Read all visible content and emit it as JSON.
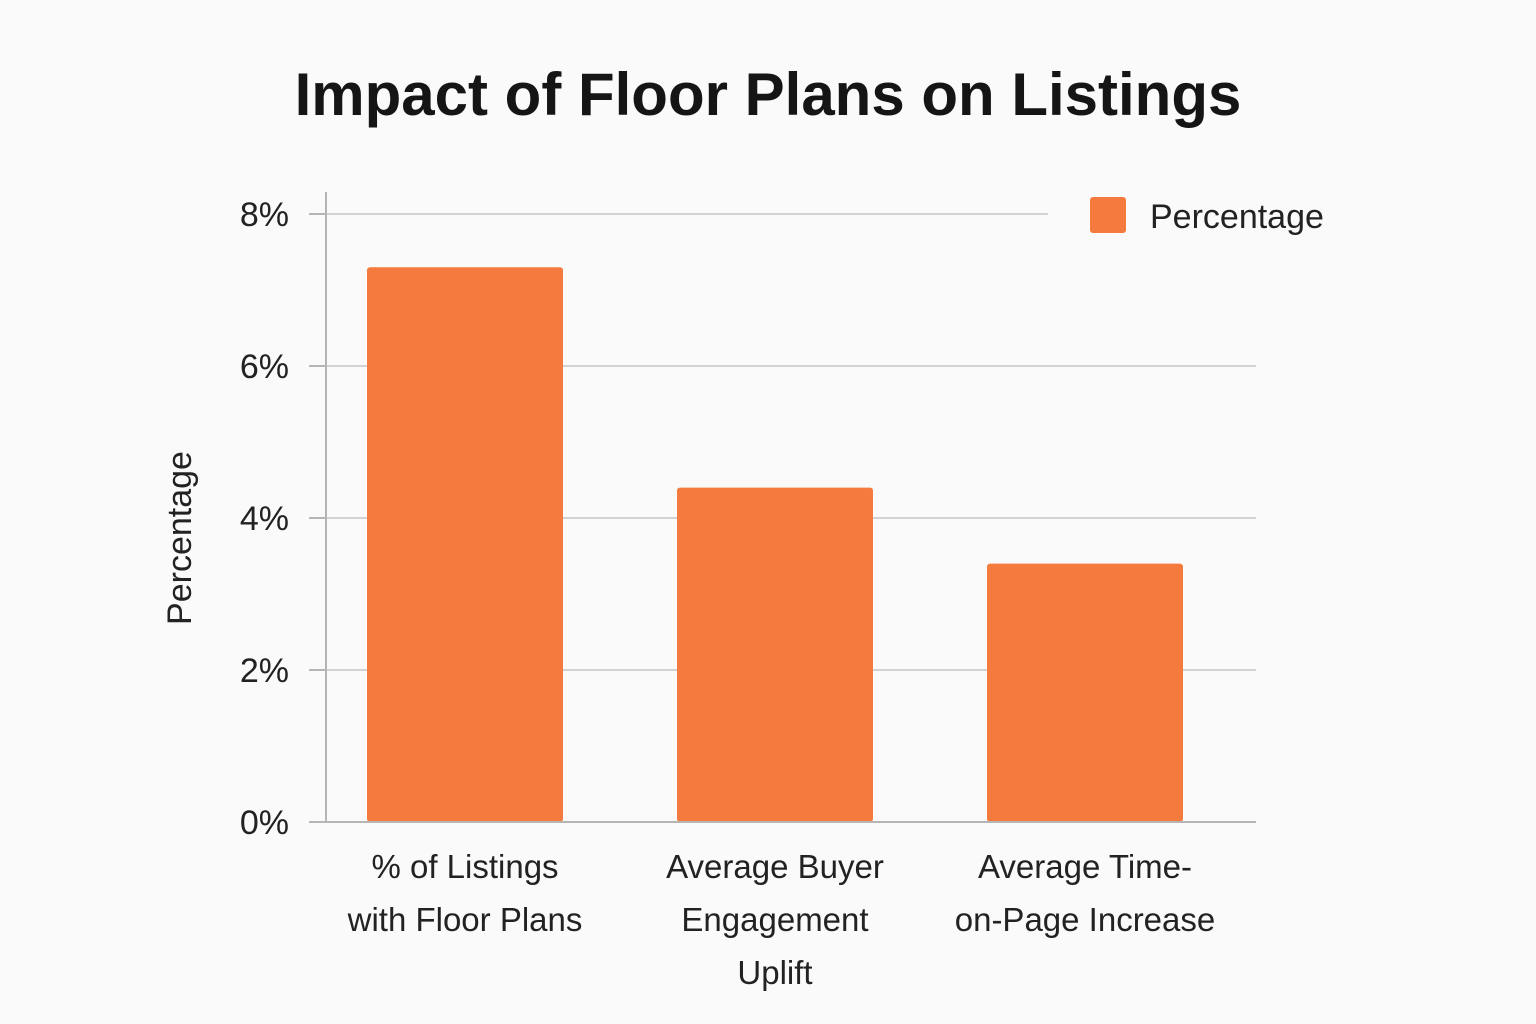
{
  "chart_data": {
    "type": "bar",
    "title": "Impact of Floor Plans on Listings",
    "xlabel": "",
    "ylabel": "Percentage",
    "ylim": [
      0,
      8
    ],
    "yticks": [
      "0%",
      "2%",
      "4%",
      "6%",
      "8%"
    ],
    "ytick_values": [
      0,
      2,
      4,
      6,
      8
    ],
    "categories": [
      "% of Listings with Floor Plans",
      "Average Buyer Engagement Uplift",
      "Average Time-on-Page Increase"
    ],
    "category_lines": [
      [
        "% of Listings",
        "with Floor Plans"
      ],
      [
        "Average Buyer",
        "Engagement",
        "Uplift"
      ],
      [
        "Average Time-",
        "on-Page Increase"
      ]
    ],
    "series": [
      {
        "name": "Percentage",
        "values": [
          7.3,
          4.4,
          3.4
        ],
        "color": "#f47a3d"
      }
    ],
    "grid": true,
    "legend_position": "top-right"
  }
}
